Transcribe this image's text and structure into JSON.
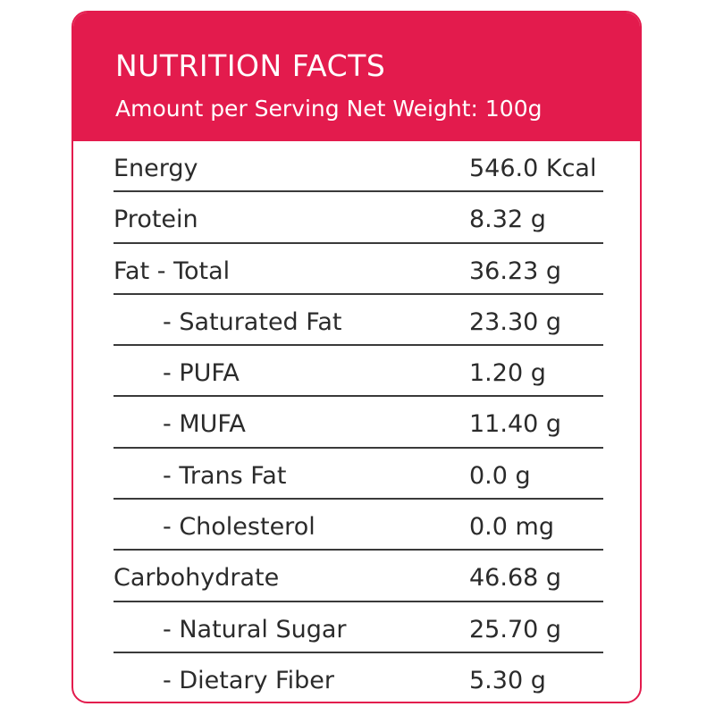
{
  "header": {
    "title": "NUTRITION FACTS",
    "subtitle": "Amount per Serving Net Weight: 100g"
  },
  "colors": {
    "accent": "#e31b4d",
    "text": "#2b2b2b",
    "rule": "#3a3a3a"
  },
  "rows": [
    {
      "label": "Energy",
      "value": "546.0 Kcal"
    },
    {
      "label": "Protein",
      "value": "8.32 g"
    },
    {
      "label": "Fat - Total",
      "value": "36.23 g"
    },
    {
      "label": "- Saturated Fat",
      "value": "23.30 g"
    },
    {
      "label": "- PUFA",
      "value": "1.20 g"
    },
    {
      "label": "- MUFA",
      "value": "11.40 g"
    },
    {
      "label": "- Trans Fat",
      "value": "0.0 g"
    },
    {
      "label": "- Cholesterol",
      "value": "0.0 mg"
    },
    {
      "label": "Carbohydrate",
      "value": "46.68 g"
    },
    {
      "label": "- Natural Sugar",
      "value": "25.70 g"
    },
    {
      "label": "- Dietary Fiber",
      "value": "5.30 g"
    }
  ]
}
